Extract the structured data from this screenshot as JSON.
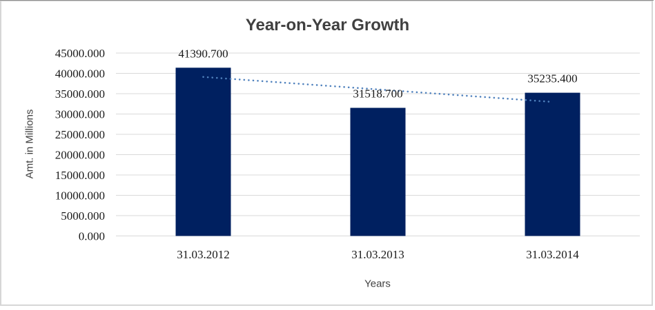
{
  "chart_data": {
    "type": "bar",
    "title": "Year-on-Year Growth",
    "xlabel": "Years",
    "ylabel": "Amt. in Millions",
    "categories": [
      "31.03.2012",
      "31.03.2013",
      "31.03.2014"
    ],
    "values": [
      41390.7,
      31518.7,
      35235.4
    ],
    "value_labels": [
      "41390.700",
      "31518.700",
      "35235.400"
    ],
    "ylim": [
      0,
      45000
    ],
    "ytick_step": 5000,
    "ytick_decimals": 3,
    "ytick_labels": [
      "0.000",
      "5000.000",
      "10000.000",
      "15000.000",
      "20000.000",
      "25000.000",
      "30000.000",
      "35000.000",
      "40000.000",
      "45000.000"
    ],
    "grid": "horizontal",
    "legend_position": "none",
    "trendline": {
      "type": "linear",
      "style": "dotted"
    },
    "colors": {
      "bar": "#002060",
      "trendline": "#4f81bd",
      "gridline": "#d9d9d9",
      "title_text": "#404040",
      "axis_title_text": "#404040",
      "tick_text": "#1a1a1a",
      "data_label_text": "#1a1a1a"
    }
  }
}
